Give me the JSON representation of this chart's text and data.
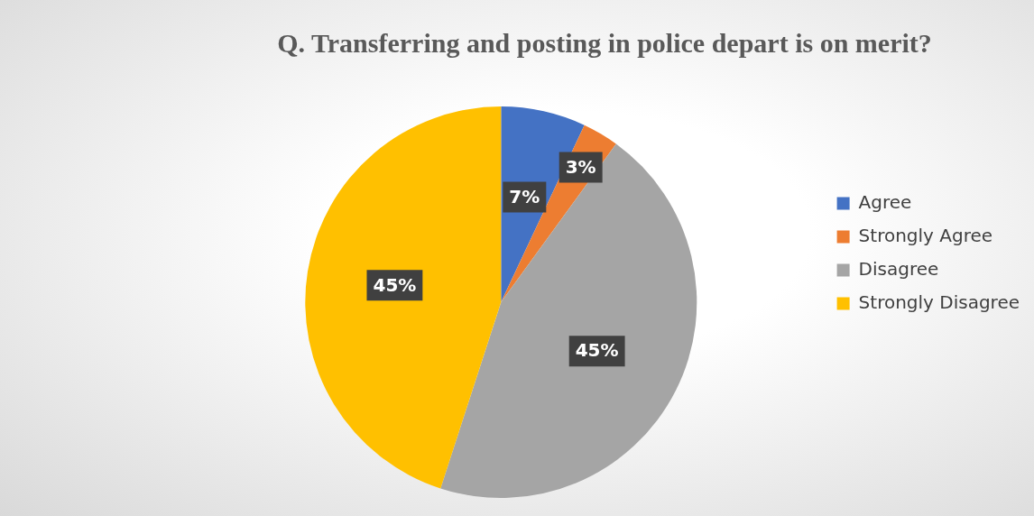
{
  "chart_data": {
    "type": "pie",
    "title": "Q. Transferring and posting in police depart is on merit?",
    "categories": [
      "Agree",
      "Strongly Agree",
      "Disagree",
      "Strongly Disagree"
    ],
    "values": [
      7,
      3,
      45,
      45
    ],
    "colors": [
      "#4472c4",
      "#ed7d31",
      "#a5a5a5",
      "#ffc000"
    ],
    "value_labels": [
      "7%",
      "3%",
      "45%",
      "45%"
    ],
    "legend": "right"
  }
}
